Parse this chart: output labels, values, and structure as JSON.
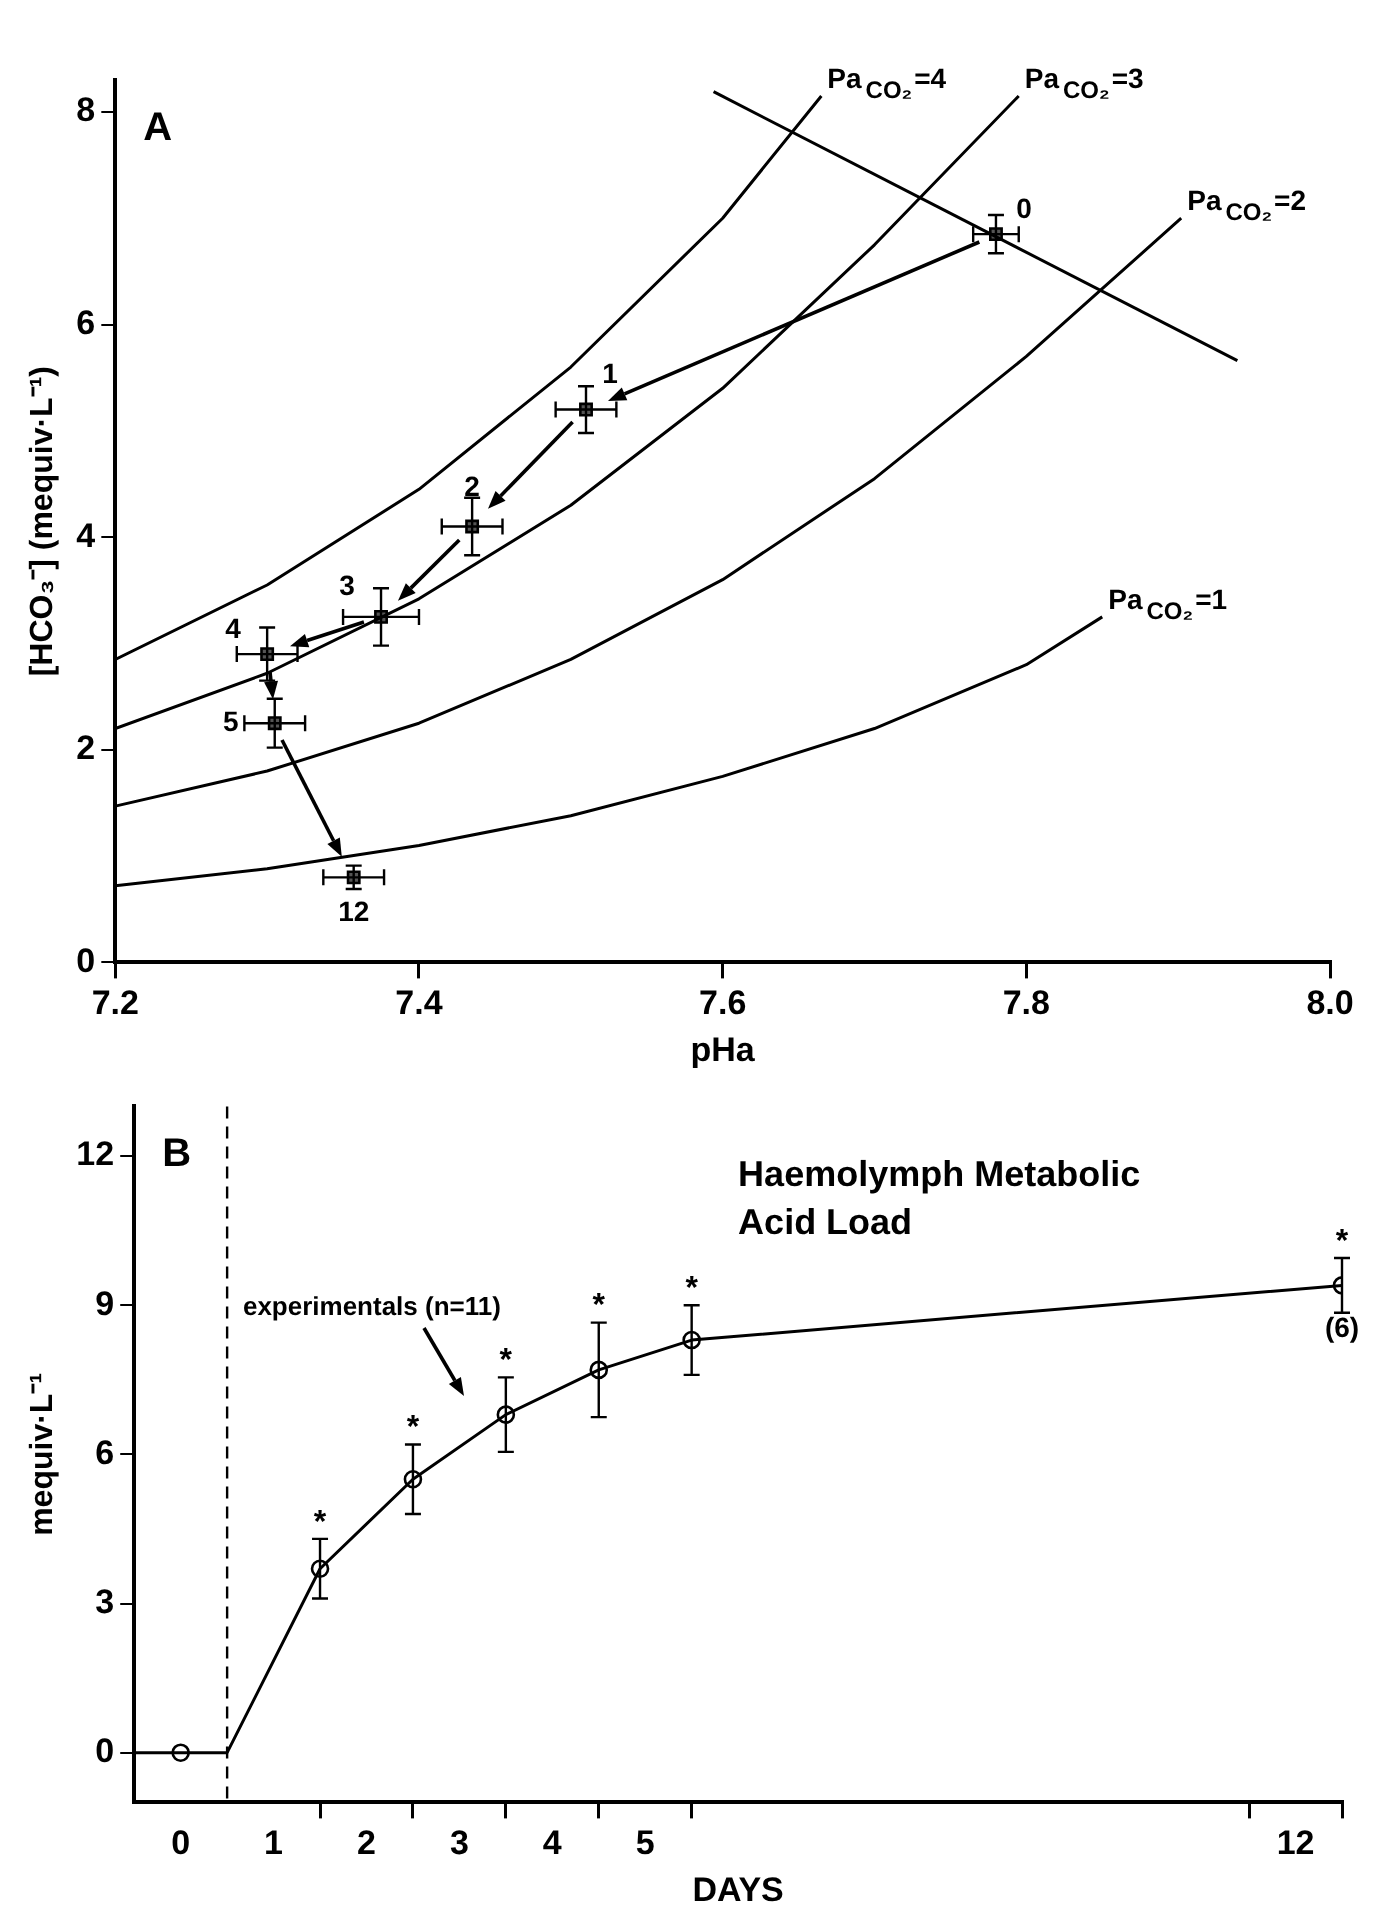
{
  "chart_data": [
    {
      "type": "line",
      "xlabel": "pHa",
      "ylabel": "[HCO₃⁻] (mequiv·L⁻¹)",
      "xlim": [
        7.2,
        8.0
      ],
      "xticks": [
        7.2,
        7.4,
        7.6,
        7.8,
        {
          "value": 8,
          "label": "8.0"
        }
      ],
      "ylim": [
        0,
        8.3
      ],
      "yticks": [
        0,
        2,
        4,
        6,
        8
      ],
      "grid": false,
      "legend": false,
      "annotations": [
        "A",
        {
          "text": "0",
          "x": 7.78,
          "y": 6.85
        },
        {
          "text": "1",
          "x": 7.51,
          "y": 5.2
        },
        {
          "text": "2",
          "x": 7.435,
          "y": 4.1
        },
        {
          "text": "3",
          "x": 7.375,
          "y": 3.25
        },
        {
          "text": "4",
          "x": 7.3,
          "y": 2.9
        },
        {
          "text": "5",
          "x": 7.305,
          "y": 2.25
        },
        {
          "text": "12",
          "x": 7.357,
          "y": 0.8
        }
      ],
      "series": [
        {
          "name": "Pa$_{CO₂}$=4",
          "color": "#000000",
          "marker": "none",
          "x": [
            7.2,
            7.3,
            7.4,
            7.5,
            7.6,
            7.665
          ],
          "values": [
            2.85,
            3.55,
            4.45,
            5.6,
            7.0,
            8.15
          ]
        },
        {
          "name": "Pa$_{CO₂}$=3",
          "color": "#000000",
          "marker": "none",
          "x": [
            7.2,
            7.3,
            7.4,
            7.5,
            7.6,
            7.7,
            7.795
          ],
          "values": [
            2.2,
            2.72,
            3.42,
            4.3,
            5.4,
            6.75,
            8.15
          ]
        },
        {
          "name": "Pa$_{CO₂}$=2",
          "color": "#000000",
          "marker": "none",
          "x": [
            7.2,
            7.3,
            7.4,
            7.5,
            7.6,
            7.7,
            7.8,
            7.902
          ],
          "values": [
            1.47,
            1.8,
            2.25,
            2.85,
            3.6,
            4.55,
            5.7,
            7.0
          ]
        },
        {
          "name": "Pa$_{CO₂}$=1",
          "color": "#000000",
          "marker": "none",
          "x": [
            7.2,
            7.3,
            7.4,
            7.5,
            7.6,
            7.7,
            7.8,
            7.85
          ],
          "values": [
            0.72,
            0.88,
            1.1,
            1.38,
            1.75,
            2.2,
            2.8,
            3.25
          ]
        },
        {
          "color": "#000000",
          "marker": "none",
          "x": [
            7.594,
            7.939
          ],
          "values": [
            8.19,
            5.66
          ]
        },
        {
          "type": "scatter",
          "color": "#000000",
          "marker": "square",
          "x": [
            7.78,
            7.51,
            7.435,
            7.375,
            7.3,
            7.305,
            7.357
          ],
          "values": [
            6.85,
            5.2,
            4.1,
            3.25,
            2.9,
            2.25,
            0.8
          ],
          "errors": [
            0.18,
            0.22,
            0.27,
            0.27,
            0.25,
            0.23,
            0.11
          ],
          "xerrors": [
            0.015,
            0.02,
            0.02,
            0.025,
            0.02,
            0.02,
            0.02
          ]
        }
      ]
    },
    {
      "type": "line",
      "title": "Haemolymph Metabolic Acid Load",
      "xlabel": "DAYS",
      "ylabel": "mequiv·L⁻¹",
      "xlim": [
        -1,
        12
      ],
      "xticks": [
        {
          "value": -0.5,
          "label": "0"
        },
        {
          "value": 0.5,
          "label": "1"
        },
        {
          "value": 1.5,
          "label": "2"
        },
        {
          "value": 2.5,
          "label": "3"
        },
        {
          "value": 3.5,
          "label": "4"
        },
        {
          "value": 4.5,
          "label": "5"
        },
        {
          "value": 11.5,
          "label": "12"
        },
        {
          "value": 1,
          "label": null
        },
        {
          "value": 2,
          "label": null
        },
        {
          "value": 3,
          "label": null
        },
        {
          "value": 4,
          "label": null
        },
        {
          "value": 5,
          "label": null
        },
        {
          "value": 11,
          "label": null
        },
        {
          "value": 12,
          "label": null
        }
      ],
      "ylim": [
        -1,
        13
      ],
      "yticks": [
        0,
        3,
        6,
        9,
        12
      ],
      "grid": false,
      "legend": false,
      "ref_lines": [
        {
          "axis": "x",
          "value": 0,
          "color": "#000000",
          "line_style": "dashed"
        }
      ],
      "annotations": [
        "B",
        "experimentals (n=11)",
        {
          "text": "(6)",
          "x": 12,
          "y": 9.4
        }
      ],
      "series": [
        {
          "color": "#000000",
          "marker": "none",
          "x": [
            -1,
            0,
            1,
            2,
            3,
            4,
            5,
            12
          ],
          "values": [
            0,
            0,
            3.7,
            5.5,
            6.8,
            7.7,
            8.3,
            9.4
          ]
        },
        {
          "type": "scatter",
          "color": "#000000",
          "marker": "circle",
          "x": [
            -0.5,
            1,
            2,
            3,
            4,
            5,
            12
          ],
          "values": [
            0,
            3.7,
            5.5,
            6.8,
            7.7,
            8.3,
            9.4
          ],
          "errors": [
            null,
            0.6,
            0.7,
            0.75,
            0.95,
            0.7,
            0.55
          ],
          "value_labels": [
            null,
            "*",
            "*",
            "*",
            "*",
            "*",
            "*"
          ]
        }
      ]
    }
  ]
}
